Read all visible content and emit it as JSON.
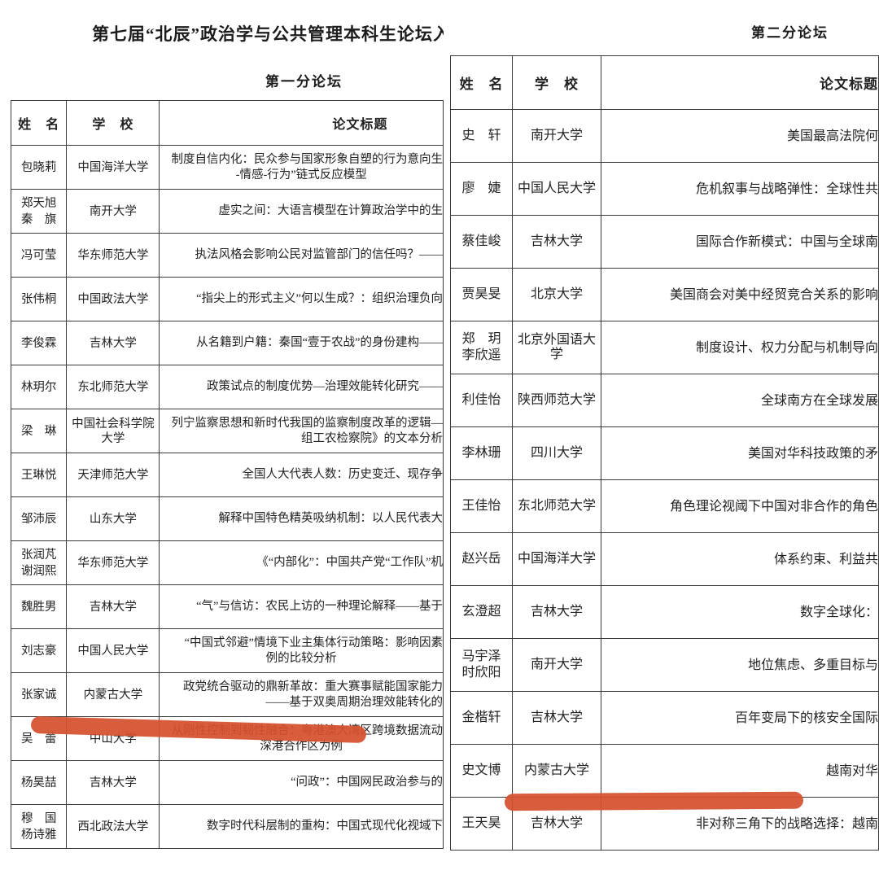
{
  "document": {
    "main_title": "第七届“北辰”政治学与公共管理本科生论坛入",
    "marker_color": "#d5512e"
  },
  "forum1": {
    "title": "第一分论坛",
    "headers": {
      "name": "姓　名",
      "school": "学　校",
      "paper": "论文标题"
    },
    "rows": [
      {
        "name": [
          "包晓莉"
        ],
        "school": "中国海洋大学",
        "paper": [
          {
            "t": "制度自信内化：民众参与国家形象自塑的行为意向生",
            "cut": true
          },
          {
            "t": "-情感-行为”链式反应模型",
            "cut": false
          }
        ]
      },
      {
        "name": [
          "郑天旭",
          "秦　旗"
        ],
        "school": "南开大学",
        "paper": [
          {
            "t": "虚实之间：大语言模型在计算政治学中的生",
            "cut": true
          }
        ]
      },
      {
        "name": [
          "冯可莹"
        ],
        "school": "华东师范大学",
        "paper": [
          {
            "t": "执法风格会影响公民对监管部门的信任吗？——",
            "cut": true
          }
        ]
      },
      {
        "name": [
          "张伟桐"
        ],
        "school": "中国政法大学",
        "paper": [
          {
            "t": "“指尖上的形式主义”何以生成？：组织治理负向",
            "cut": true
          }
        ]
      },
      {
        "name": [
          "李俊霖"
        ],
        "school": "吉林大学",
        "paper": [
          {
            "t": "从名籍到户籍：秦国“壹于农战”的身份建构——",
            "cut": true
          }
        ]
      },
      {
        "name": [
          "林玥尔"
        ],
        "school": "东北师范大学",
        "paper": [
          {
            "t": "政策试点的制度优势—治理效能转化研究——",
            "cut": true
          }
        ]
      },
      {
        "name": [
          "梁　琳"
        ],
        "school": "中国社会科学院大学",
        "paper": [
          {
            "t": "列宁监察思想和新时代我国的监察制度改革的逻辑—",
            "cut": true
          },
          {
            "t": "组工农检察院》的文本分析",
            "cut": true
          }
        ]
      },
      {
        "name": [
          "王琳悦"
        ],
        "school": "天津师范大学",
        "paper": [
          {
            "t": "全国人大代表人数：历史变迁、现存争",
            "cut": true
          }
        ]
      },
      {
        "name": [
          "邹沛辰"
        ],
        "school": "山东大学",
        "paper": [
          {
            "t": "解释中国特色精英吸纳机制：以人民代表大",
            "cut": true
          }
        ]
      },
      {
        "name": [
          "张润芃",
          "谢润熙"
        ],
        "school": "华东师范大学",
        "paper": [
          {
            "t": "《“内部化”：中国共产党“工作队”机",
            "cut": true
          }
        ]
      },
      {
        "name": [
          "魏胜男"
        ],
        "school": "吉林大学",
        "paper": [
          {
            "t": "“气”与信访：农民上访的一种理论解释——基于",
            "cut": true
          }
        ]
      },
      {
        "name": [
          "刘志豪"
        ],
        "school": "中国人民大学",
        "paper": [
          {
            "t": "“中国式邻避”情境下业主集体行动策略：影响因素",
            "cut": true
          },
          {
            "t": "例的比较分析",
            "cut": false
          }
        ]
      },
      {
        "name": [
          "张家诚"
        ],
        "school": "内蒙古大学",
        "paper": [
          {
            "t": "政党统合驱动的鼎新革故：重大赛事赋能国家能力",
            "cut": true
          },
          {
            "t": "——基于双奥周期治理效能转化的",
            "cut": true
          }
        ]
      },
      {
        "name": [
          "吴　蕾"
        ],
        "school": "中山大学",
        "paper": [
          {
            "t": "从刚性控制到韧性融合：粤港澳大湾区跨境数据流动",
            "cut": true
          },
          {
            "t": "深港合作区为例",
            "cut": false
          }
        ]
      },
      {
        "name": [
          "杨昊喆"
        ],
        "school": "吉林大学",
        "paper": [
          {
            "t": "“问政”：中国网民政治参与的",
            "cut": true
          }
        ]
      },
      {
        "name": [
          "穆　国",
          "杨诗雅"
        ],
        "school": "西北政法大学",
        "paper": [
          {
            "t": "数字时代科层制的重构：中国式现代化视域下",
            "cut": true
          }
        ]
      }
    ]
  },
  "forum2": {
    "title": "第二分论坛",
    "headers": {
      "name": "姓　名",
      "school": "学　校",
      "paper": "论文标题"
    },
    "rows": [
      {
        "name": [
          "史　轩"
        ],
        "school": "南开大学",
        "paper": [
          {
            "t": "美国最高法院何",
            "cut": true
          }
        ]
      },
      {
        "name": [
          "廖　婕"
        ],
        "school": "中国人民大学",
        "paper": [
          {
            "t": "危机叙事与战略弹性：全球性共",
            "cut": true
          }
        ]
      },
      {
        "name": [
          "蔡佳峻"
        ],
        "school": "吉林大学",
        "paper": [
          {
            "t": "国际合作新模式：中国与全球南",
            "cut": true
          }
        ]
      },
      {
        "name": [
          "贾昊旻"
        ],
        "school": "北京大学",
        "paper": [
          {
            "t": "美国商会对美中经贸竞合关系的影响",
            "cut": true
          }
        ]
      },
      {
        "name": [
          "郑　玥",
          "李欣遥"
        ],
        "school": "北京外国语大学",
        "paper": [
          {
            "t": "制度设计、权力分配与机制导向",
            "cut": true
          }
        ]
      },
      {
        "name": [
          "利佳怡"
        ],
        "school": "陕西师范大学",
        "paper": [
          {
            "t": "全球南方在全球发展",
            "cut": true
          }
        ]
      },
      {
        "name": [
          "李林珊"
        ],
        "school": "四川大学",
        "paper": [
          {
            "t": "美国对华科技政策的矛",
            "cut": true
          }
        ]
      },
      {
        "name": [
          "王佳怡"
        ],
        "school": "东北师范大学",
        "paper": [
          {
            "t": "角色理论视阈下中国对非合作的角色",
            "cut": true
          }
        ]
      },
      {
        "name": [
          "赵兴岳"
        ],
        "school": "中国海洋大学",
        "paper": [
          {
            "t": "体系约束、利益共",
            "cut": true
          }
        ]
      },
      {
        "name": [
          "玄澄超"
        ],
        "school": "吉林大学",
        "paper": [
          {
            "t": "数字全球化：",
            "cut": true
          }
        ]
      },
      {
        "name": [
          "马宇泽",
          "时欣阳"
        ],
        "school": "南开大学",
        "paper": [
          {
            "t": "地位焦虑、多重目标与",
            "cut": true
          }
        ]
      },
      {
        "name": [
          "金楷轩"
        ],
        "school": "吉林大学",
        "paper": [
          {
            "t": "百年变局下的核安全国际",
            "cut": true
          }
        ]
      },
      {
        "name": [
          "史文博"
        ],
        "school": "内蒙古大学",
        "paper": [
          {
            "t": "越南对华",
            "cut": true
          }
        ]
      },
      {
        "name": [
          "王天昊"
        ],
        "school": "吉林大学",
        "paper": [
          {
            "t": "非对称三角下的战略选择：越南",
            "cut": true
          }
        ]
      }
    ]
  }
}
